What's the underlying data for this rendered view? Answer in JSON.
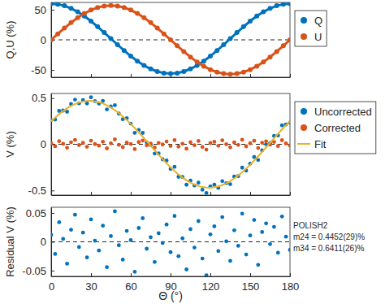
{
  "chart_data": [
    {
      "type": "line",
      "x": [
        0,
        5,
        10,
        15,
        20,
        25,
        30,
        35,
        40,
        45,
        50,
        55,
        60,
        65,
        70,
        75,
        80,
        85,
        90,
        95,
        100,
        105,
        110,
        115,
        120,
        125,
        130,
        135,
        140,
        145,
        150,
        155,
        160,
        165,
        170,
        175,
        180
      ],
      "xlim": [
        0,
        180
      ],
      "xticks": [
        0,
        30,
        60,
        90,
        120,
        150,
        180
      ],
      "ylim": [
        -62,
        62
      ],
      "yticks": [
        -50,
        0,
        50
      ],
      "y_label": "Q,U (%)",
      "tick_labels": "y",
      "legend": "right",
      "reference_line": 0,
      "series": [
        {
          "name": "Q",
          "color": "#0072BD",
          "marker": "circle",
          "values": [
            60,
            59.1,
            56.5,
            52.2,
            46.4,
            39.3,
            31,
            21.8,
            12.1,
            2,
            -8.1,
            -17.8,
            -27,
            -35.3,
            -42.4,
            -48.2,
            -52.5,
            -55.1,
            -56,
            -55.1,
            -52.5,
            -48.2,
            -42.4,
            -35.3,
            -27,
            -17.8,
            -8.1,
            2,
            12.1,
            21.8,
            31,
            39.3,
            46.4,
            52.2,
            56.5,
            59.1,
            60
          ]
        },
        {
          "name": "U",
          "color": "#D95319",
          "marker": "circle",
          "values": [
            0,
            9.9,
            19.5,
            28.5,
            36.6,
            43.7,
            49.4,
            53.6,
            56.1,
            57,
            56.1,
            53.6,
            49.4,
            43.7,
            36.6,
            28.5,
            19.5,
            9.9,
            0,
            -9.9,
            -19.5,
            -28.5,
            -36.6,
            -43.7,
            -49.4,
            -53.6,
            -56.1,
            -57,
            -56.1,
            -53.6,
            -49.4,
            -43.7,
            -36.6,
            -28.5,
            -19.5,
            -9.9,
            0
          ]
        }
      ]
    },
    {
      "type": "scatter",
      "x": [
        0,
        3,
        6,
        9,
        12,
        15,
        18,
        21,
        24,
        27,
        30,
        33,
        36,
        39,
        42,
        45,
        48,
        51,
        54,
        57,
        60,
        63,
        66,
        69,
        72,
        75,
        78,
        81,
        84,
        87,
        90,
        93,
        96,
        99,
        102,
        105,
        108,
        111,
        114,
        117,
        120,
        123,
        126,
        129,
        132,
        135,
        138,
        141,
        144,
        147,
        150,
        153,
        156,
        159,
        162,
        165,
        168,
        171,
        174,
        177,
        180
      ],
      "xlim": [
        0,
        180
      ],
      "xticks": [
        0,
        30,
        60,
        90,
        120,
        150,
        180
      ],
      "ylim": [
        -0.55,
        0.55
      ],
      "yticks": [
        -0.5,
        0,
        0.5
      ],
      "y_label": "V (%)",
      "tick_labels": "y",
      "legend": "right",
      "reference_line": 0,
      "series": [
        {
          "name": "Uncorrected",
          "color": "#0072BD",
          "marker": "circle",
          "values": [
            0.261,
            0.268,
            0.361,
            0.365,
            0.352,
            0.436,
            0.483,
            0.443,
            0.479,
            0.442,
            0.509,
            0.467,
            0.441,
            0.47,
            0.378,
            0.409,
            0.423,
            0.332,
            0.271,
            0.282,
            0.224,
            0.124,
            0.154,
            0.123,
            0.021,
            -0.008,
            -0.1,
            -0.099,
            -0.163,
            -0.176,
            -0.267,
            -0.244,
            -0.352,
            -0.354,
            -0.438,
            -0.393,
            -0.446,
            -0.416,
            -0.492,
            -0.527,
            -0.457,
            -0.438,
            -0.472,
            -0.399,
            -0.421,
            -0.432,
            -0.35,
            -0.345,
            -0.253,
            -0.285,
            -0.21,
            -0.138,
            -0.17,
            -0.065,
            -0.001,
            0.012,
            0.091,
            0.095,
            0.205,
            0.215,
            0.235
          ]
        },
        {
          "name": "Corrected",
          "color": "#D95319",
          "marker": "circle",
          "values": [
            0.012,
            -0.021,
            0.034,
            0.005,
            -0.038,
            0.021,
            0.047,
            -0.009,
            0.016,
            -0.027,
            0.039,
            0.002,
            -0.015,
            0.028,
            -0.044,
            0.01,
            0.053,
            -0.006,
            -0.031,
            0.019,
            0.003,
            -0.052,
            0.024,
            0.041,
            -0.012,
            0.008,
            -0.035,
            0.015,
            -0.002,
            0.03,
            -0.018,
            0.045,
            -0.025,
            0.006,
            -0.048,
            0.022,
            -0.01,
            0.036,
            -0.029,
            -0.058,
            0.013,
            0.027,
            -0.016,
            0.043,
            0.001,
            -0.033,
            0.02,
            -0.007,
            0.049,
            -0.022,
            0.011,
            0.038,
            -0.04,
            0.017,
            0.032,
            -0.004,
            0.026,
            -0.019,
            0.044,
            0.009,
            -0.014
          ]
        },
        {
          "name": "Fit",
          "color": "#EDB120",
          "type": "line",
          "values": [
            0.249,
            0.289,
            0.327,
            0.36,
            0.39,
            0.415,
            0.436,
            0.452,
            0.463,
            0.469,
            0.47,
            0.465,
            0.456,
            0.442,
            0.422,
            0.399,
            0.37,
            0.338,
            0.302,
            0.263,
            0.221,
            0.176,
            0.13,
            0.082,
            0.033,
            -0.016,
            -0.065,
            -0.114,
            -0.161,
            -0.206,
            -0.249,
            -0.289,
            -0.327,
            -0.36,
            -0.39,
            -0.415,
            -0.436,
            -0.452,
            -0.463,
            -0.469,
            -0.47,
            -0.465,
            -0.456,
            -0.442,
            -0.422,
            -0.399,
            -0.37,
            -0.338,
            -0.302,
            -0.263,
            -0.221,
            -0.176,
            -0.13,
            -0.082,
            -0.033,
            0.016,
            0.065,
            0.114,
            0.161,
            0.206,
            0.249
          ]
        }
      ]
    },
    {
      "type": "scatter",
      "x": [
        0,
        3,
        6,
        9,
        12,
        15,
        18,
        21,
        24,
        27,
        30,
        33,
        36,
        39,
        42,
        45,
        48,
        51,
        54,
        57,
        60,
        63,
        66,
        69,
        72,
        75,
        78,
        81,
        84,
        87,
        90,
        93,
        96,
        99,
        102,
        105,
        108,
        111,
        114,
        117,
        120,
        123,
        126,
        129,
        132,
        135,
        138,
        141,
        144,
        147,
        150,
        153,
        156,
        159,
        162,
        165,
        168,
        171,
        174,
        177,
        180
      ],
      "xlim": [
        0,
        180
      ],
      "xticks": [
        0,
        30,
        60,
        90,
        120,
        150,
        180
      ],
      "ylim": [
        -0.06,
        0.06
      ],
      "yticks": [
        -0.05,
        0,
        0.05
      ],
      "y_label": "Residual V (%)",
      "x_label": "Θ (°)",
      "reference_line": 0,
      "annotations": [
        "POLISH2",
        "m24 = 0.4452(29)%",
        "m34 = 0.6411(26)%"
      ],
      "series": [
        {
          "color": "#0072BD",
          "marker": "circle",
          "values": [
            0.012,
            -0.021,
            0.034,
            0.005,
            -0.038,
            0.021,
            0.047,
            -0.009,
            0.016,
            -0.027,
            0.039,
            0.002,
            -0.015,
            0.028,
            -0.044,
            0.01,
            0.053,
            -0.006,
            -0.031,
            0.019,
            0.003,
            -0.052,
            0.024,
            0.041,
            -0.012,
            0.008,
            -0.035,
            0.015,
            -0.002,
            0.03,
            -0.018,
            0.045,
            -0.025,
            0.006,
            -0.048,
            0.022,
            -0.01,
            0.036,
            -0.029,
            -0.058,
            0.013,
            0.027,
            -0.016,
            0.043,
            0.001,
            -0.033,
            0.02,
            -0.007,
            0.049,
            -0.022,
            0.011,
            0.038,
            -0.04,
            0.017,
            0.032,
            -0.004,
            0.026,
            -0.019,
            0.044,
            0.009,
            -0.014
          ]
        }
      ]
    }
  ]
}
